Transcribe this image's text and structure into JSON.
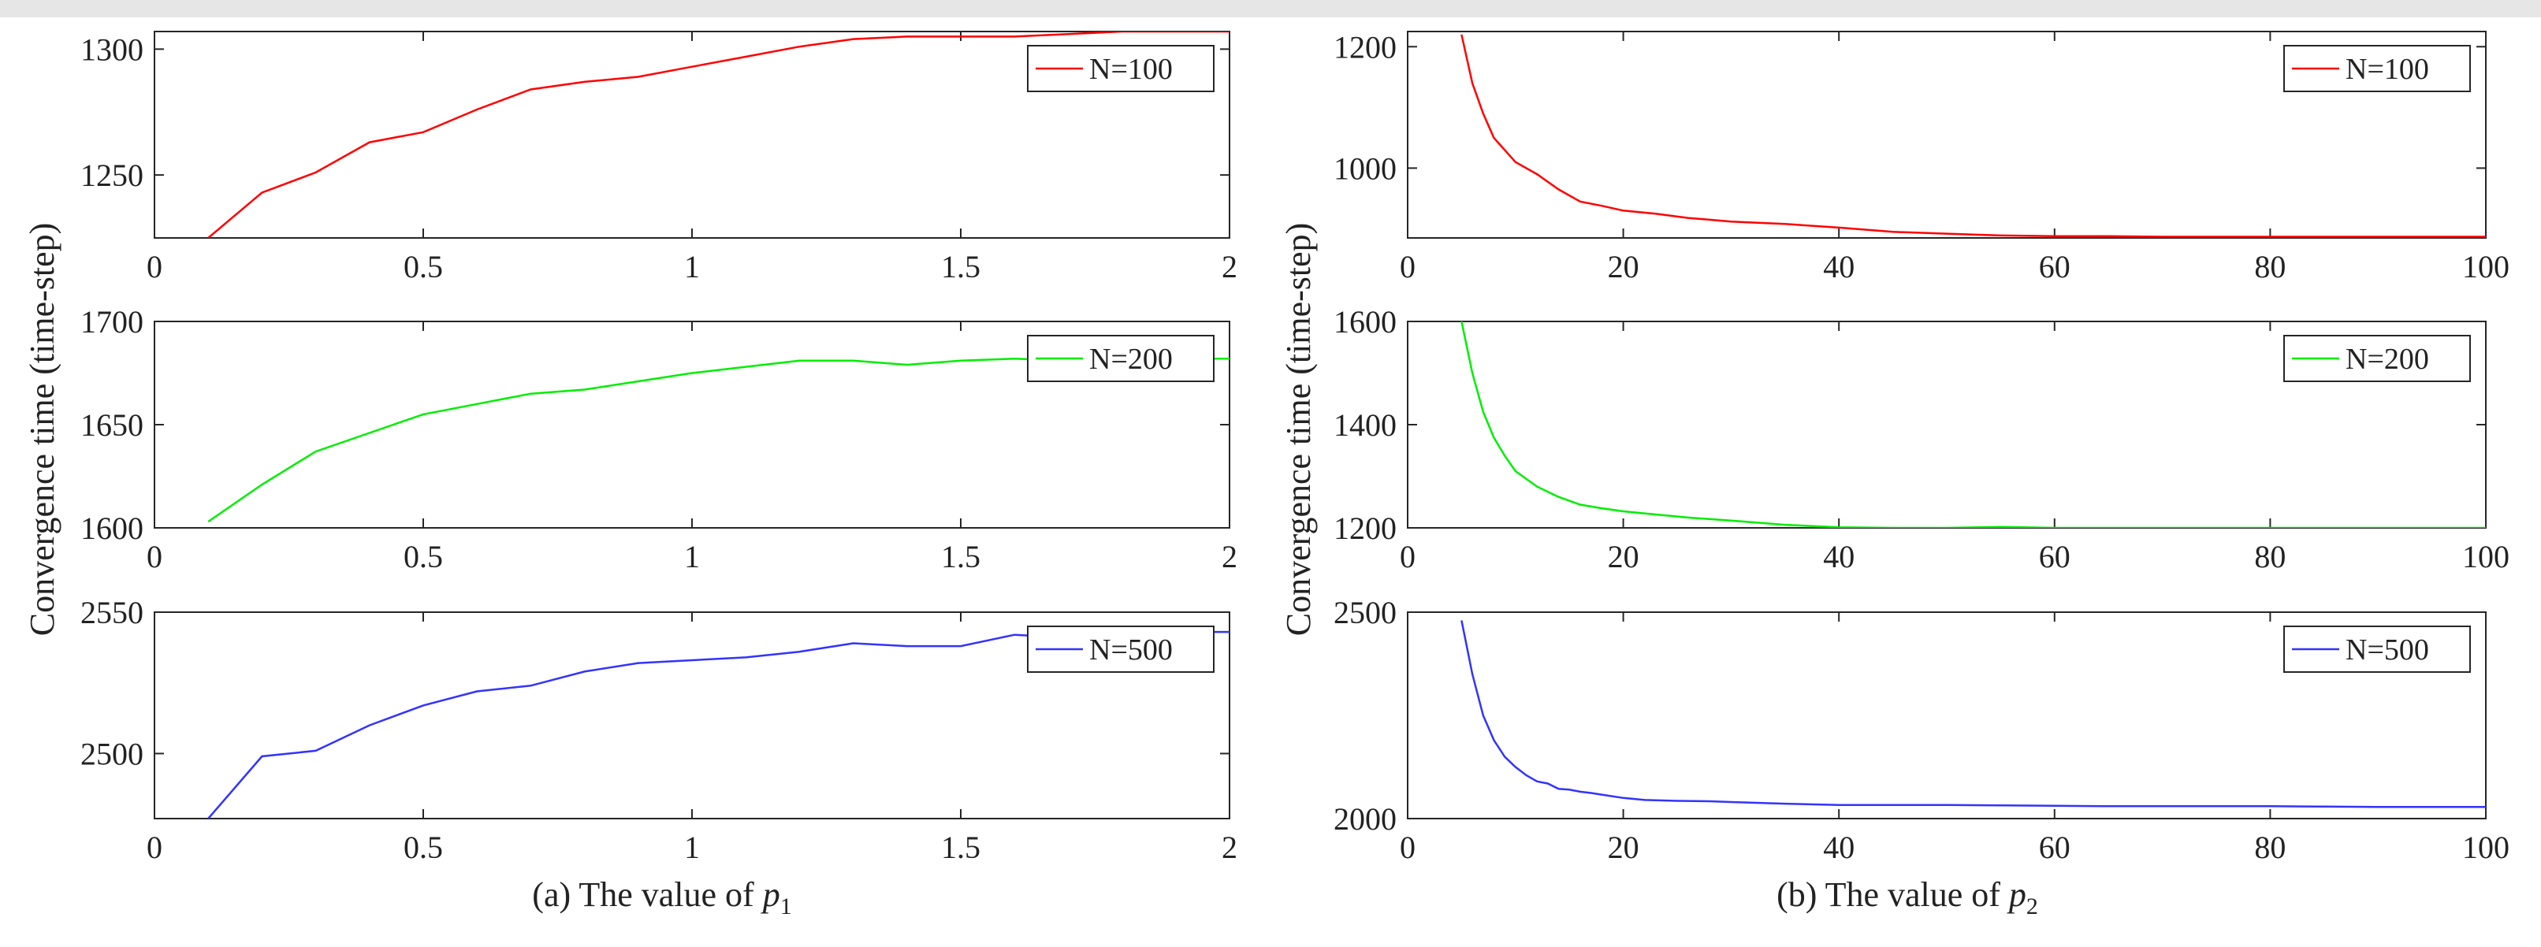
{
  "chart_data": [
    {
      "id": "a1",
      "type": "line",
      "series": [
        {
          "name": "N=100",
          "color": "#ff0000",
          "x": [
            0.1,
            0.2,
            0.3,
            0.4,
            0.5,
            0.6,
            0.7,
            0.8,
            0.9,
            1.0,
            1.1,
            1.2,
            1.3,
            1.4,
            1.5,
            1.6,
            1.7,
            1.8,
            1.9,
            2.0
          ],
          "y": [
            1225,
            1243,
            1251,
            1263,
            1267,
            1276,
            1284,
            1287,
            1289,
            1293,
            1297,
            1301,
            1304,
            1305,
            1305,
            1305,
            1306,
            1307,
            1307,
            1307
          ]
        }
      ],
      "xlim": [
        0,
        2
      ],
      "ylim": [
        1225,
        1307
      ],
      "xticks": [
        "0",
        "0.5",
        "1",
        "1.5",
        "2"
      ],
      "xtick_values": [
        0,
        0.5,
        1,
        1.5,
        2
      ],
      "yticks": [
        "1250",
        "1300"
      ],
      "ytick_values": [
        1250,
        1300
      ],
      "legend": "N=100"
    },
    {
      "id": "a2",
      "type": "line",
      "series": [
        {
          "name": "N=200",
          "color": "#00ee00",
          "x": [
            0.1,
            0.2,
            0.3,
            0.4,
            0.5,
            0.6,
            0.7,
            0.8,
            0.9,
            1.0,
            1.1,
            1.2,
            1.3,
            1.4,
            1.5,
            1.6,
            1.7,
            1.8,
            1.9,
            2.0
          ],
          "y": [
            1603,
            1621,
            1637,
            1646,
            1655,
            1660,
            1665,
            1667,
            1671,
            1675,
            1678,
            1681,
            1681,
            1679,
            1681,
            1682,
            1681,
            1682,
            1682,
            1682
          ]
        }
      ],
      "xlim": [
        0,
        2
      ],
      "ylim": [
        1600,
        1700
      ],
      "xticks": [
        "0",
        "0.5",
        "1",
        "1.5",
        "2"
      ],
      "xtick_values": [
        0,
        0.5,
        1,
        1.5,
        2
      ],
      "yticks": [
        "1600",
        "1650",
        "1700"
      ],
      "ytick_values": [
        1600,
        1650,
        1700
      ],
      "legend": "N=200"
    },
    {
      "id": "a3",
      "type": "line",
      "series": [
        {
          "name": "N=500",
          "color": "#3333ff",
          "x": [
            0.1,
            0.2,
            0.3,
            0.4,
            0.5,
            0.6,
            0.7,
            0.8,
            0.9,
            1.0,
            1.1,
            1.2,
            1.3,
            1.4,
            1.5,
            1.6,
            1.7,
            1.8,
            1.9,
            2.0
          ],
          "y": [
            2477,
            2499,
            2501,
            2510,
            2517,
            2522,
            2524,
            2529,
            2532,
            2533,
            2534,
            2536,
            2539,
            2538,
            2538,
            2542,
            2541,
            2542,
            2543,
            2543
          ]
        }
      ],
      "xlim": [
        0,
        2
      ],
      "ylim": [
        2477,
        2550
      ],
      "xticks": [
        "0",
        "0.5",
        "1",
        "1.5",
        "2"
      ],
      "xtick_values": [
        0,
        0.5,
        1,
        1.5,
        2
      ],
      "yticks": [
        "2500",
        "2550"
      ],
      "ytick_values": [
        2500,
        2550
      ],
      "legend": "N=500"
    },
    {
      "id": "b1",
      "type": "line",
      "series": [
        {
          "name": "N=100",
          "color": "#ff0000",
          "x": [
            5,
            6,
            7,
            8,
            9,
            10,
            12,
            14,
            16,
            18,
            20,
            23,
            26,
            30,
            35,
            40,
            45,
            50,
            55,
            60,
            65,
            70,
            75,
            80,
            85,
            90,
            95,
            100
          ],
          "y": [
            1220,
            1140,
            1090,
            1050,
            1030,
            1010,
            990,
            965,
            945,
            938,
            930,
            925,
            918,
            912,
            908,
            902,
            895,
            892,
            889,
            888,
            888,
            887,
            887,
            887,
            887,
            887,
            887,
            887
          ]
        }
      ],
      "xlim": [
        0,
        100
      ],
      "ylim": [
        885,
        1225
      ],
      "xticks": [
        "0",
        "20",
        "40",
        "60",
        "80",
        "100"
      ],
      "xtick_values": [
        0,
        20,
        40,
        60,
        80,
        100
      ],
      "yticks": [
        "1000",
        "1200"
      ],
      "ytick_values": [
        1000,
        1200
      ],
      "legend": "N=100"
    },
    {
      "id": "b2",
      "type": "line",
      "series": [
        {
          "name": "N=200",
          "color": "#00ee00",
          "x": [
            5,
            6,
            7,
            8,
            9,
            10,
            12,
            14,
            16,
            18,
            20,
            23,
            26,
            30,
            35,
            40,
            45,
            50,
            55,
            60,
            65,
            70,
            75,
            80,
            85,
            90,
            95,
            100
          ],
          "y": [
            1600,
            1500,
            1425,
            1375,
            1340,
            1310,
            1280,
            1260,
            1245,
            1238,
            1232,
            1226,
            1220,
            1214,
            1206,
            1201,
            1200,
            1200,
            1202,
            1200,
            1200,
            1200,
            1200,
            1200,
            1200,
            1200,
            1200,
            1200
          ]
        }
      ],
      "xlim": [
        0,
        100
      ],
      "ylim": [
        1200,
        1600
      ],
      "xticks": [
        "0",
        "20",
        "40",
        "60",
        "80",
        "100"
      ],
      "xtick_values": [
        0,
        20,
        40,
        60,
        80,
        100
      ],
      "yticks": [
        "1200",
        "1400",
        "1600"
      ],
      "ytick_values": [
        1200,
        1400,
        1600
      ],
      "legend": "N=200"
    },
    {
      "id": "b3",
      "type": "line",
      "series": [
        {
          "name": "N=500",
          "color": "#3333ff",
          "x": [
            5,
            6,
            7,
            8,
            9,
            10,
            11,
            12,
            13,
            14,
            15,
            16,
            17,
            18,
            20,
            22,
            25,
            28,
            30,
            35,
            40,
            45,
            50,
            55,
            60,
            65,
            70,
            75,
            80,
            85,
            90,
            95,
            100
          ],
          "y": [
            2480,
            2350,
            2250,
            2190,
            2150,
            2125,
            2105,
            2090,
            2085,
            2072,
            2070,
            2065,
            2062,
            2058,
            2050,
            2045,
            2043,
            2042,
            2040,
            2036,
            2033,
            2033,
            2033,
            2032,
            2031,
            2030,
            2030,
            2030,
            2030,
            2029,
            2028,
            2028,
            2028
          ]
        }
      ],
      "xlim": [
        0,
        100
      ],
      "ylim": [
        2000,
        2500
      ],
      "xticks": [
        "0",
        "20",
        "40",
        "60",
        "80",
        "100"
      ],
      "xtick_values": [
        0,
        20,
        40,
        60,
        80,
        100
      ],
      "yticks": [
        "2000",
        "2500"
      ],
      "ytick_values": [
        2000,
        2500
      ],
      "legend": "N=500"
    }
  ],
  "ylabel_left": "Convergence  time (time-step)",
  "ylabel_right": "Convergence  time (time-step)",
  "caption_a_prefix": "(a)  The value of ",
  "caption_a_var": "p",
  "caption_a_sub": "1",
  "caption_b_prefix": "(b)  The value of ",
  "caption_b_var": "p",
  "caption_b_sub": "2"
}
